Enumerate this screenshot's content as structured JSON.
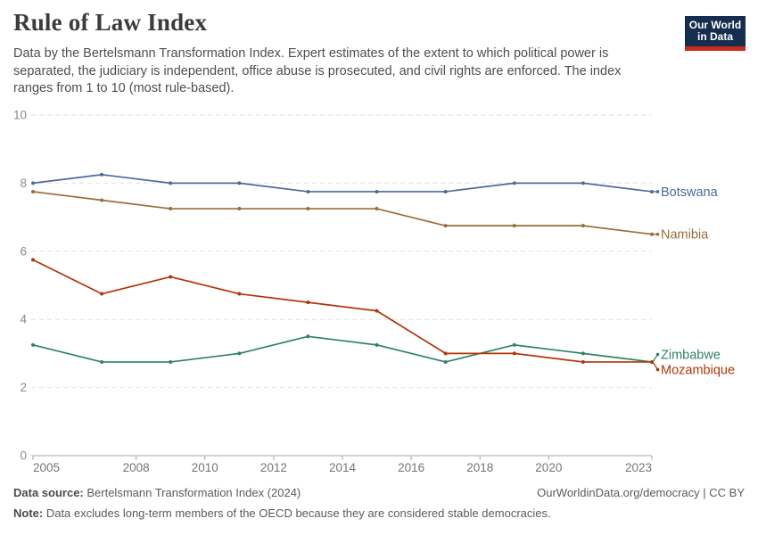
{
  "header": {
    "title": "Rule of Law Index",
    "subtitle": "Data by the Bertelsmann Transformation Index. Expert estimates of the extent to which political power is separated, the judiciary is independent, office abuse is prosecuted, and civil rights are enforced. The index ranges from 1 to 10 (most rule-based).",
    "logo": {
      "line1": "Our World",
      "line2": "in Data",
      "bg_color": "#152D4E",
      "bar_color": "#C7291F"
    }
  },
  "chart_data": {
    "type": "line",
    "title": "Rule of Law Index",
    "xlabel": "",
    "ylabel": "",
    "x": [
      2005,
      2007,
      2009,
      2011,
      2013,
      2015,
      2017,
      2019,
      2021,
      2023
    ],
    "series": [
      {
        "name": "Botswana",
        "color": "#4C6A9C",
        "values": [
          8,
          8.25,
          8,
          8,
          7.75,
          7.75,
          7.75,
          8,
          8,
          7.75
        ]
      },
      {
        "name": "Namibia",
        "color": "#996D39",
        "values": [
          7.75,
          7.5,
          7.25,
          7.25,
          7.25,
          7.25,
          6.75,
          6.75,
          6.75,
          6.5
        ]
      },
      {
        "name": "Zimbabwe",
        "color": "#2C8465",
        "values": [
          3.25,
          2.75,
          2.75,
          3,
          3.5,
          3.25,
          2.75,
          3.25,
          3,
          2.75
        ]
      },
      {
        "name": "Mozambique",
        "color": "#B13507",
        "values": [
          5.75,
          4.75,
          5.25,
          4.75,
          4.5,
          4.25,
          3,
          3,
          2.75,
          2.75
        ]
      }
    ],
    "x_ticks": [
      2005,
      2008,
      2010,
      2012,
      2014,
      2016,
      2018,
      2020,
      2023
    ],
    "y_ticks": [
      0,
      2,
      4,
      6,
      8,
      10
    ],
    "xlim": [
      2005,
      2023
    ],
    "ylim": [
      0,
      10
    ],
    "grid": true,
    "legend_position": "right-end-labels",
    "grid_color": "#e2e2e2",
    "axis_color": "#a8a8a8",
    "y_tick_color": "#8a8a8a",
    "x_tick_color": "#757575"
  },
  "footer": {
    "source_label": "Data source:",
    "source_text": " Bertelsmann Transformation Index (2024)",
    "note_label": "Note:",
    "note_text": " Data excludes long-term members of the OECD because they are considered stable democracies.",
    "link_text": "OurWorldinData.org/democracy | CC BY"
  }
}
